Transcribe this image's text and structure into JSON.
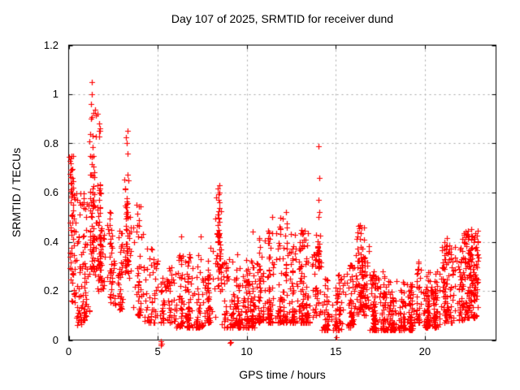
{
  "chart_data": {
    "type": "scatter",
    "title": "Day 107 of 2025, SRMTID for receiver dund",
    "xlabel": "GPS time / hours",
    "ylabel": "SRMTID / TECUs",
    "xlim": [
      0,
      24
    ],
    "ylim": [
      0,
      1.2
    ],
    "xticks": {
      "values": [
        0,
        5,
        10,
        15,
        20
      ],
      "labels": [
        "0",
        "5",
        "10",
        "15",
        "20"
      ]
    },
    "yticks": {
      "values": [
        0,
        0.2,
        0.4,
        0.6,
        0.8,
        1,
        1.2
      ],
      "labels": [
        "0",
        "0.2",
        "0.4",
        "0.6",
        "0.8",
        "1",
        "1.2"
      ]
    },
    "grid": true,
    "grid_style": "dashed",
    "legend": "none",
    "marker": {
      "glyph": "plus",
      "size": 7,
      "color": "#ff0000"
    },
    "colors": {
      "axis": "#000000",
      "grid": "#a6a6a6",
      "background": "#ffffff",
      "text": "#000000"
    },
    "series_name": "SRMTID",
    "point_model": {
      "seed": 20250417,
      "baseline_segments": [
        [
          0.0,
          0.35,
          60,
          0.14,
          0.76,
          1.1
        ],
        [
          0.35,
          0.75,
          42,
          0.06,
          0.6,
          1.5
        ],
        [
          0.75,
          1.15,
          45,
          0.08,
          0.62,
          1.5
        ],
        [
          1.15,
          1.5,
          30,
          0.25,
          0.7,
          1.4
        ],
        [
          1.5,
          2.0,
          40,
          0.2,
          0.6,
          1.5
        ],
        [
          2.0,
          2.6,
          45,
          0.15,
          0.55,
          1.6
        ],
        [
          2.6,
          3.1,
          40,
          0.12,
          0.45,
          1.6
        ],
        [
          3.1,
          3.5,
          25,
          0.25,
          0.6,
          1.4
        ],
        [
          3.5,
          4.2,
          50,
          0.1,
          0.55,
          1.9
        ],
        [
          4.2,
          5.0,
          50,
          0.07,
          0.38,
          1.8
        ],
        [
          5.0,
          6.0,
          65,
          0.07,
          0.3,
          1.7
        ],
        [
          6.0,
          7.6,
          150,
          0.05,
          0.35,
          1.9
        ],
        [
          7.6,
          8.3,
          55,
          0.07,
          0.38,
          1.7
        ],
        [
          8.3,
          8.6,
          20,
          0.2,
          0.5,
          1.3
        ],
        [
          8.6,
          9.35,
          55,
          0.05,
          0.35,
          1.8
        ],
        [
          9.35,
          10.6,
          130,
          0.05,
          0.35,
          1.9
        ],
        [
          10.6,
          11.6,
          110,
          0.07,
          0.45,
          2.0
        ],
        [
          11.6,
          12.35,
          80,
          0.07,
          0.5,
          2.1
        ],
        [
          12.35,
          13.7,
          150,
          0.07,
          0.45,
          1.9
        ],
        [
          13.7,
          14.2,
          30,
          0.1,
          0.35,
          1.5
        ],
        [
          14.2,
          15.4,
          100,
          0.04,
          0.27,
          1.8
        ],
        [
          15.4,
          16.1,
          55,
          0.05,
          0.32,
          1.7
        ],
        [
          16.1,
          16.9,
          50,
          0.1,
          0.4,
          1.5
        ],
        [
          16.9,
          18.0,
          130,
          0.04,
          0.28,
          1.9
        ],
        [
          18.0,
          19.35,
          150,
          0.04,
          0.24,
          1.9
        ],
        [
          19.35,
          19.8,
          35,
          0.07,
          0.35,
          1.6
        ],
        [
          19.8,
          20.9,
          120,
          0.05,
          0.28,
          1.9
        ],
        [
          20.9,
          21.7,
          60,
          0.07,
          0.4,
          1.7
        ],
        [
          21.7,
          22.2,
          50,
          0.08,
          0.38,
          1.6
        ],
        [
          22.2,
          23.0,
          90,
          0.09,
          0.45,
          1.4
        ]
      ],
      "spikes": [
        {
          "x": 1.3,
          "sx": 0.07,
          "n": 40,
          "ymin": 0.3,
          "ymax": 1.05,
          "k": 1.5
        },
        {
          "x": 1.7,
          "sx": 0.09,
          "n": 40,
          "ymin": 0.28,
          "ymax": 0.92,
          "k": 1.6
        },
        {
          "x": 3.28,
          "sx": 0.07,
          "n": 30,
          "ymin": 0.3,
          "ymax": 0.85,
          "k": 1.4
        },
        {
          "x": 8.45,
          "sx": 0.07,
          "n": 35,
          "ymin": 0.22,
          "ymax": 0.63,
          "k": 1.2
        },
        {
          "x": 14.05,
          "sx": 0.05,
          "n": 22,
          "ymin": 0.28,
          "ymax": 0.47,
          "k": 1.0
        },
        {
          "x": 16.45,
          "sx": 0.18,
          "n": 60,
          "ymin": 0.12,
          "ymax": 0.47,
          "k": 1.2
        },
        {
          "x": 21.25,
          "sx": 0.12,
          "n": 30,
          "ymin": 0.1,
          "ymax": 0.42,
          "k": 1.3
        },
        {
          "x": 22.55,
          "sx": 0.22,
          "n": 60,
          "ymin": 0.1,
          "ymax": 0.45,
          "k": 1.2
        }
      ],
      "outliers": [
        [
          0.1,
          0.72
        ],
        [
          0.15,
          0.75
        ],
        [
          0.22,
          0.66
        ],
        [
          1.28,
          1.05
        ],
        [
          1.31,
          1.0
        ],
        [
          1.27,
          0.96
        ],
        [
          1.24,
          0.9
        ],
        [
          1.36,
          0.83
        ],
        [
          1.62,
          0.92
        ],
        [
          1.7,
          0.88
        ],
        [
          1.76,
          0.85
        ],
        [
          3.3,
          0.85
        ],
        [
          3.24,
          0.8
        ],
        [
          3.32,
          0.76
        ],
        [
          6.3,
          0.42
        ],
        [
          7.4,
          0.42
        ],
        [
          8.45,
          0.63
        ],
        [
          8.48,
          0.6
        ],
        [
          8.42,
          0.57
        ],
        [
          10.35,
          0.44
        ],
        [
          11.45,
          0.5
        ],
        [
          12.2,
          0.52
        ],
        [
          14.05,
          0.79
        ],
        [
          14.06,
          0.66
        ],
        [
          14.03,
          0.57
        ],
        [
          14.07,
          0.52
        ],
        [
          14.05,
          0.5
        ],
        [
          5.18,
          -0.015
        ],
        [
          5.2,
          -0.02
        ],
        [
          5.22,
          -0.015
        ],
        [
          5.2,
          -0.005
        ],
        [
          9.07,
          -0.01
        ],
        [
          9.11,
          -0.008
        ],
        [
          15.03,
          0.01
        ],
        [
          22.3,
          0.44
        ],
        [
          22.6,
          0.45
        ],
        [
          22.75,
          0.41
        ]
      ],
      "x_data_end": 23.0
    }
  }
}
